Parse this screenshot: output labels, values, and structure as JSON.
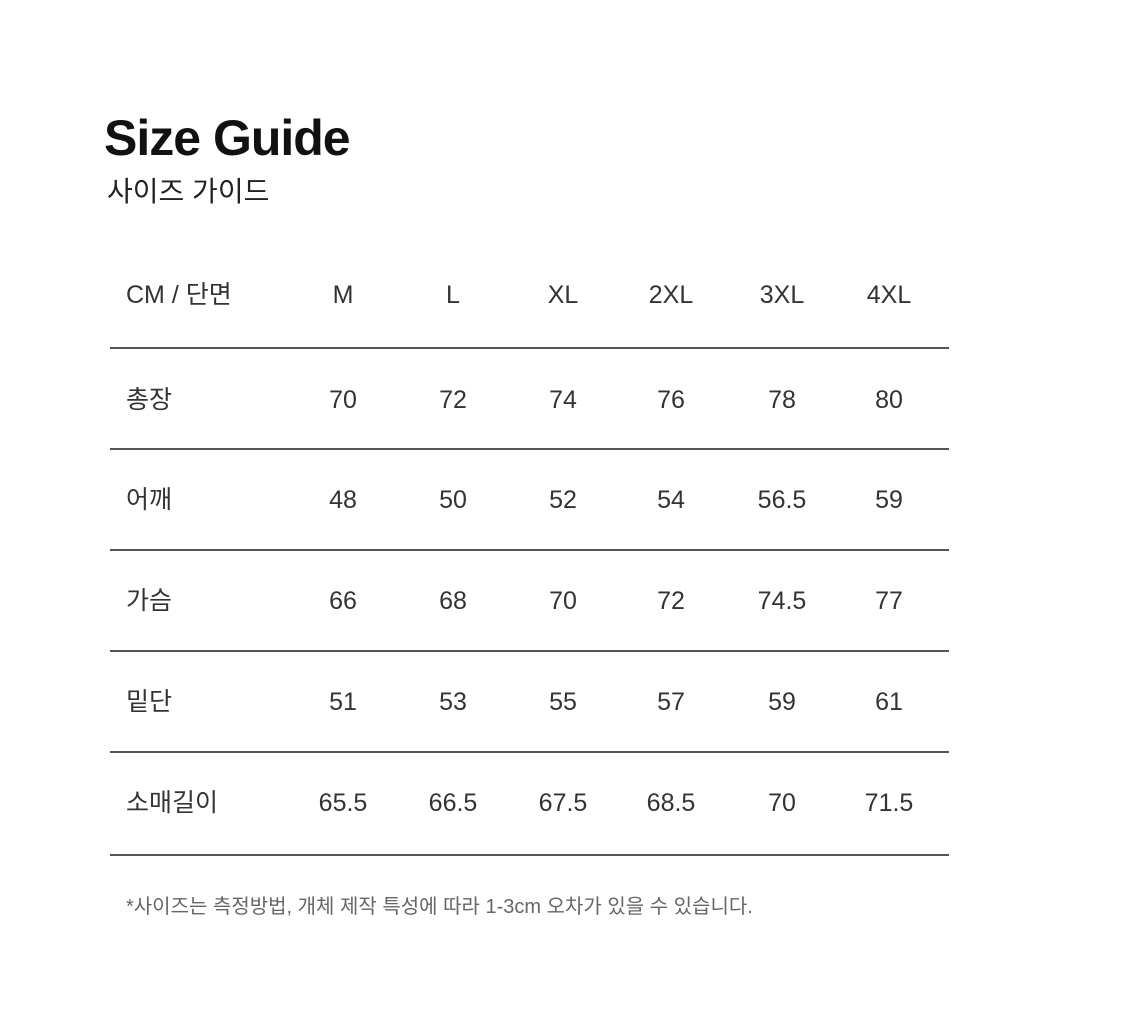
{
  "header": {
    "title": "Size Guide",
    "subtitle": "사이즈 가이드"
  },
  "table": {
    "corner": "CM / 단면",
    "sizes": [
      "M",
      "L",
      "XL",
      "2XL",
      "3XL",
      "4XL"
    ],
    "rows": [
      {
        "label": "총장",
        "values": [
          "70",
          "72",
          "74",
          "76",
          "78",
          "80"
        ]
      },
      {
        "label": "어깨",
        "values": [
          "48",
          "50",
          "52",
          "54",
          "56.5",
          "59"
        ]
      },
      {
        "label": "가슴",
        "values": [
          "66",
          "68",
          "70",
          "72",
          "74.5",
          "77"
        ]
      },
      {
        "label": "밑단",
        "values": [
          "51",
          "53",
          "55",
          "57",
          "59",
          "61"
        ]
      },
      {
        "label": "소매길이",
        "values": [
          "65.5",
          "66.5",
          "67.5",
          "68.5",
          "70",
          "71.5"
        ]
      }
    ]
  },
  "footnote": "*사이즈는 측정방법, 개체 제작 특성에 따라 1-3cm 오차가 있을 수 있습니다."
}
